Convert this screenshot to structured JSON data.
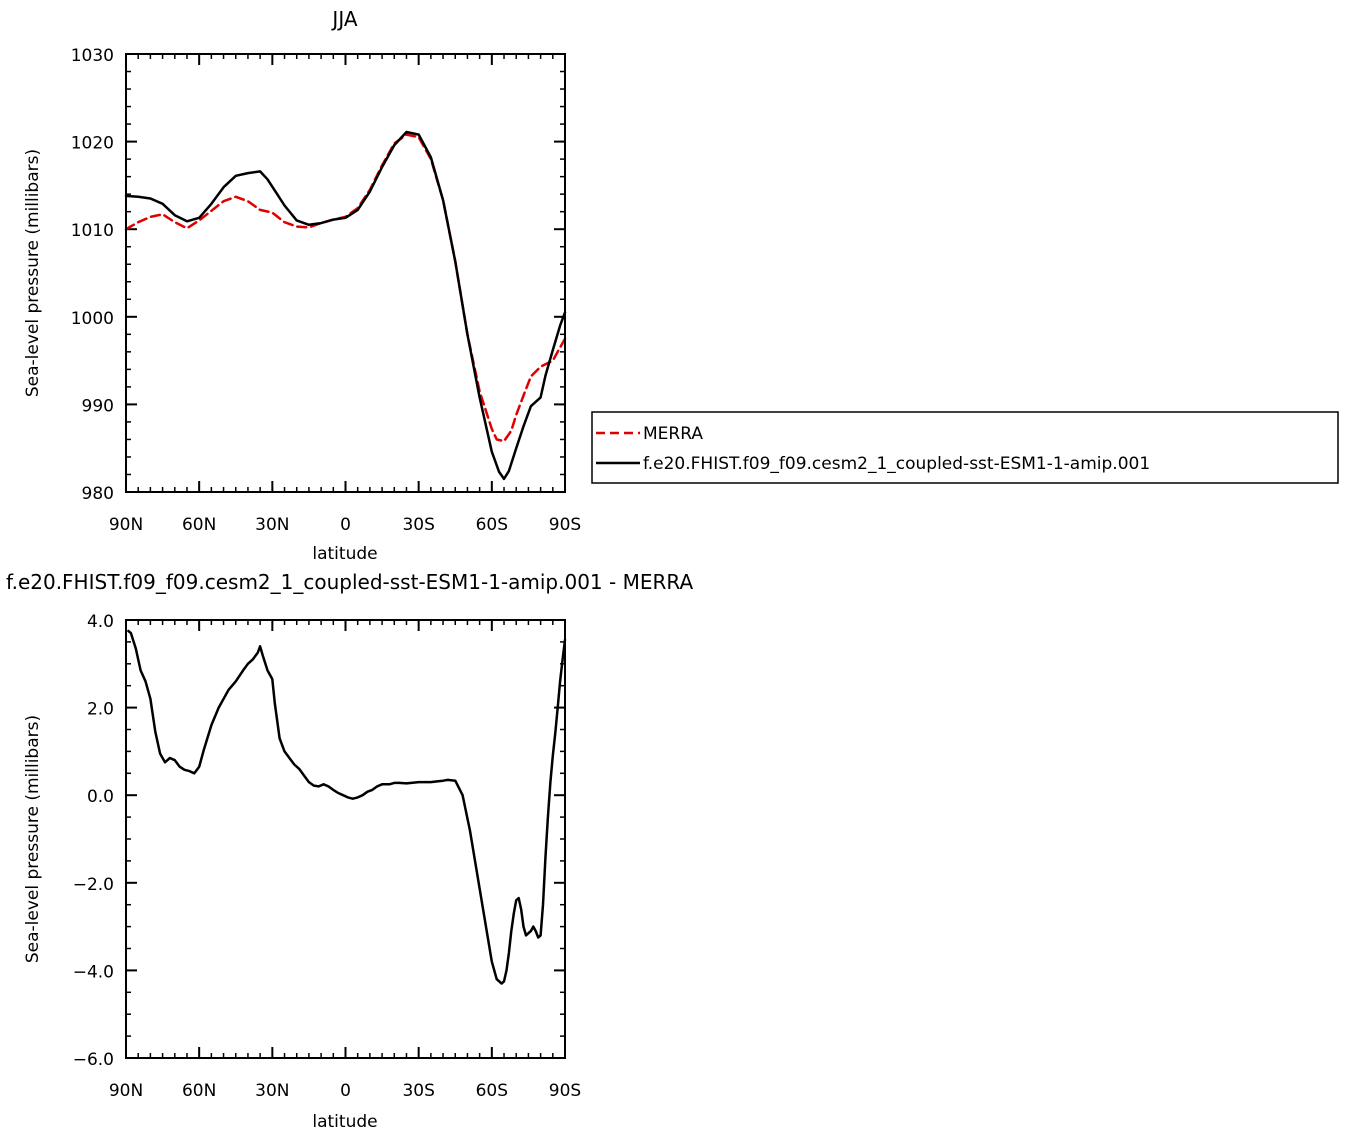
{
  "chart_data": [
    {
      "type": "line",
      "title": "JJA",
      "xlabel": "latitude",
      "ylabel": "Sea-level pressure (millibars)",
      "xlim": [
        90,
        -90
      ],
      "ylim": [
        980,
        1030
      ],
      "x_ticks": [
        90,
        60,
        30,
        0,
        -30,
        -60,
        -90
      ],
      "x_tick_labels": [
        "90N",
        "60N",
        "30N",
        "0",
        "30S",
        "60S",
        "90S"
      ],
      "y_ticks": [
        980,
        990,
        1000,
        1010,
        1020,
        1030
      ],
      "y_tick_labels": [
        "980",
        "990",
        "1000",
        "1010",
        "1020",
        "1030"
      ],
      "y_minor_step": 2,
      "legend": "right",
      "series": [
        {
          "name": "MERRA",
          "color": "#e00000",
          "dash": "dashed",
          "x": [
            90,
            85,
            80,
            75,
            70,
            65,
            60,
            55,
            50,
            45,
            40,
            35,
            30,
            25,
            20,
            15,
            10,
            5,
            0,
            -5,
            -10,
            -15,
            -20,
            -25,
            -30,
            -35,
            -40,
            -45,
            -50,
            -55,
            -60,
            -62,
            -65,
            -68,
            -70,
            -73,
            -76,
            -80,
            -85,
            -90
          ],
          "y": [
            1010.0,
            1010.8,
            1011.4,
            1011.7,
            1010.8,
            1010.1,
            1011.0,
            1012.1,
            1013.2,
            1013.7,
            1013.2,
            1012.2,
            1011.9,
            1010.8,
            1010.3,
            1010.2,
            1010.7,
            1011.1,
            1011.4,
            1012.4,
            1014.5,
            1017.3,
            1019.8,
            1020.8,
            1020.5,
            1018.0,
            1013.3,
            1006.3,
            998.0,
            991.5,
            987.2,
            986.0,
            985.8,
            987.0,
            988.8,
            991.0,
            993.2,
            994.3,
            995.0,
            997.5
          ]
        },
        {
          "name": "f.e20.FHIST.f09_f09.cesm2_1_coupled-sst-ESM1-1-amip.001",
          "color": "#000000",
          "dash": "solid",
          "x": [
            90,
            85,
            80,
            75,
            70,
            65,
            60,
            55,
            50,
            45,
            40,
            35,
            32,
            28,
            25,
            20,
            15,
            10,
            5,
            0,
            -5,
            -10,
            -15,
            -20,
            -25,
            -30,
            -35,
            -40,
            -45,
            -50,
            -55,
            -60,
            -63,
            -65,
            -67,
            -70,
            -73,
            -76,
            -80,
            -82,
            -85,
            -88,
            -90
          ],
          "y": [
            1013.8,
            1013.7,
            1013.5,
            1012.9,
            1011.6,
            1010.9,
            1011.3,
            1012.9,
            1014.8,
            1016.1,
            1016.4,
            1016.6,
            1015.7,
            1014.0,
            1012.7,
            1011.0,
            1010.5,
            1010.7,
            1011.1,
            1011.3,
            1012.2,
            1014.3,
            1017.1,
            1019.6,
            1021.1,
            1020.8,
            1018.2,
            1013.3,
            1006.3,
            998.0,
            990.8,
            984.6,
            982.3,
            981.5,
            982.4,
            985.0,
            987.5,
            989.8,
            990.8,
            993.3,
            996.2,
            999.0,
            1000.5
          ]
        }
      ]
    },
    {
      "type": "line",
      "title": "f.e20.FHIST.f09_f09.cesm2_1_coupled-sst-ESM1-1-amip.001 - MERRA",
      "xlabel": "latitude",
      "ylabel": "Sea-level pressure (millibars)",
      "xlim": [
        90,
        -90
      ],
      "ylim": [
        -6,
        4
      ],
      "x_ticks": [
        90,
        60,
        30,
        0,
        -30,
        -60,
        -90
      ],
      "x_tick_labels": [
        "90N",
        "60N",
        "30N",
        "0",
        "30S",
        "60S",
        "90S"
      ],
      "y_ticks": [
        -6,
        -4,
        -2,
        0,
        2,
        4
      ],
      "y_tick_labels": [
        "−6.0",
        "−4.0",
        "−2.0",
        "0.0",
        "2.0",
        "4.0"
      ],
      "y_minor_step": 0.5,
      "series": [
        {
          "color": "#000000",
          "dash": "solid",
          "x": [
            89,
            88,
            86,
            84,
            82,
            80,
            78,
            76,
            74,
            72,
            70,
            68,
            66,
            64,
            62,
            60,
            58,
            55,
            52,
            50,
            48,
            45,
            42,
            40,
            38,
            36,
            35,
            34,
            32,
            30,
            29,
            27,
            25,
            23,
            21,
            19,
            17,
            15,
            13,
            11,
            9,
            7,
            5,
            3,
            1,
            -1,
            -3,
            -5,
            -7,
            -9,
            -11,
            -13,
            -15,
            -18,
            -20,
            -22,
            -25,
            -27,
            -30,
            -33,
            -35,
            -38,
            -40,
            -42,
            -45,
            -48,
            -51,
            -54,
            -57,
            -60,
            -62,
            -64,
            -65,
            -66,
            -67,
            -68,
            -69,
            -70,
            -71,
            -72,
            -73,
            -74,
            -75,
            -76,
            -77,
            -78,
            -79,
            -80,
            -81,
            -82,
            -83,
            -84,
            -85,
            -86,
            -87,
            -88,
            -89,
            -90
          ],
          "y": [
            3.75,
            3.7,
            3.35,
            2.85,
            2.6,
            2.2,
            1.45,
            0.95,
            0.75,
            0.85,
            0.8,
            0.65,
            0.58,
            0.55,
            0.5,
            0.65,
            1.05,
            1.6,
            2.0,
            2.2,
            2.4,
            2.6,
            2.85,
            3.0,
            3.1,
            3.25,
            3.4,
            3.2,
            2.85,
            2.65,
            2.1,
            1.3,
            1.0,
            0.85,
            0.7,
            0.6,
            0.45,
            0.3,
            0.22,
            0.2,
            0.25,
            0.2,
            0.12,
            0.05,
            0.0,
            -0.05,
            -0.08,
            -0.05,
            0.0,
            0.08,
            0.12,
            0.2,
            0.25,
            0.25,
            0.28,
            0.28,
            0.27,
            0.28,
            0.3,
            0.3,
            0.3,
            0.32,
            0.33,
            0.35,
            0.33,
            0.0,
            -0.8,
            -1.8,
            -2.8,
            -3.8,
            -4.2,
            -4.3,
            -4.25,
            -4.0,
            -3.6,
            -3.1,
            -2.7,
            -2.4,
            -2.35,
            -2.6,
            -3.0,
            -3.2,
            -3.15,
            -3.1,
            -3.0,
            -3.1,
            -3.25,
            -3.2,
            -2.5,
            -1.4,
            -0.5,
            0.3,
            0.9,
            1.4,
            2.0,
            2.6,
            3.1,
            3.55
          ]
        }
      ]
    }
  ],
  "legend": {
    "items": [
      {
        "label": "MERRA",
        "color": "#e00000",
        "dash": "dashed"
      },
      {
        "label": "f.e20.FHIST.f09_f09.cesm2_1_coupled-sst-ESM1-1-amip.001",
        "color": "#000000",
        "dash": "solid"
      }
    ]
  }
}
